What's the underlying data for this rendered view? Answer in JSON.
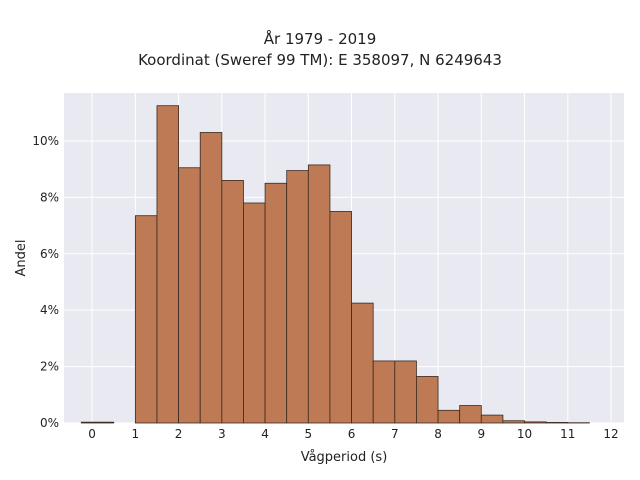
{
  "chart_data": {
    "type": "bar",
    "title": "År 1979 - 2019",
    "subtitle": "Koordinat (Sweref 99 TM): E 358097, N 6249643",
    "xlabel": "Vågperiod (s)",
    "ylabel": "Andel",
    "xlim": [
      -0.65,
      12.3
    ],
    "ylim": [
      0,
      11.7
    ],
    "xticks": [
      "0",
      "1",
      "2",
      "3",
      "4",
      "5",
      "6",
      "7",
      "8",
      "9",
      "10",
      "11",
      "12"
    ],
    "xtick_values": [
      0,
      1,
      2,
      3,
      4,
      5,
      6,
      7,
      8,
      9,
      10,
      11,
      12
    ],
    "yticks": [
      "0%",
      "2%",
      "4%",
      "6%",
      "8%",
      "10%"
    ],
    "ytick_values": [
      0,
      2,
      4,
      6,
      8,
      10
    ],
    "bin_edges": [
      -0.25,
      0.5,
      1.0,
      1.5,
      2.0,
      2.5,
      3.0,
      3.5,
      4.0,
      4.5,
      5.0,
      5.5,
      6.0,
      6.5,
      7.0,
      7.5,
      8.0,
      8.5,
      9.0,
      9.5,
      10.0,
      10.5,
      11.0,
      11.5
    ],
    "values": [
      0.03,
      0.0,
      7.35,
      11.25,
      9.05,
      10.3,
      8.6,
      7.8,
      8.5,
      8.95,
      9.15,
      7.5,
      4.25,
      2.2,
      2.2,
      1.65,
      0.45,
      0.62,
      0.28,
      0.08,
      0.04,
      0.02,
      0.01
    ],
    "bar_color": "#bd7a55",
    "bar_edge_color": "#3a2a20",
    "plot_background": "#e9e9f1",
    "grid": true
  }
}
